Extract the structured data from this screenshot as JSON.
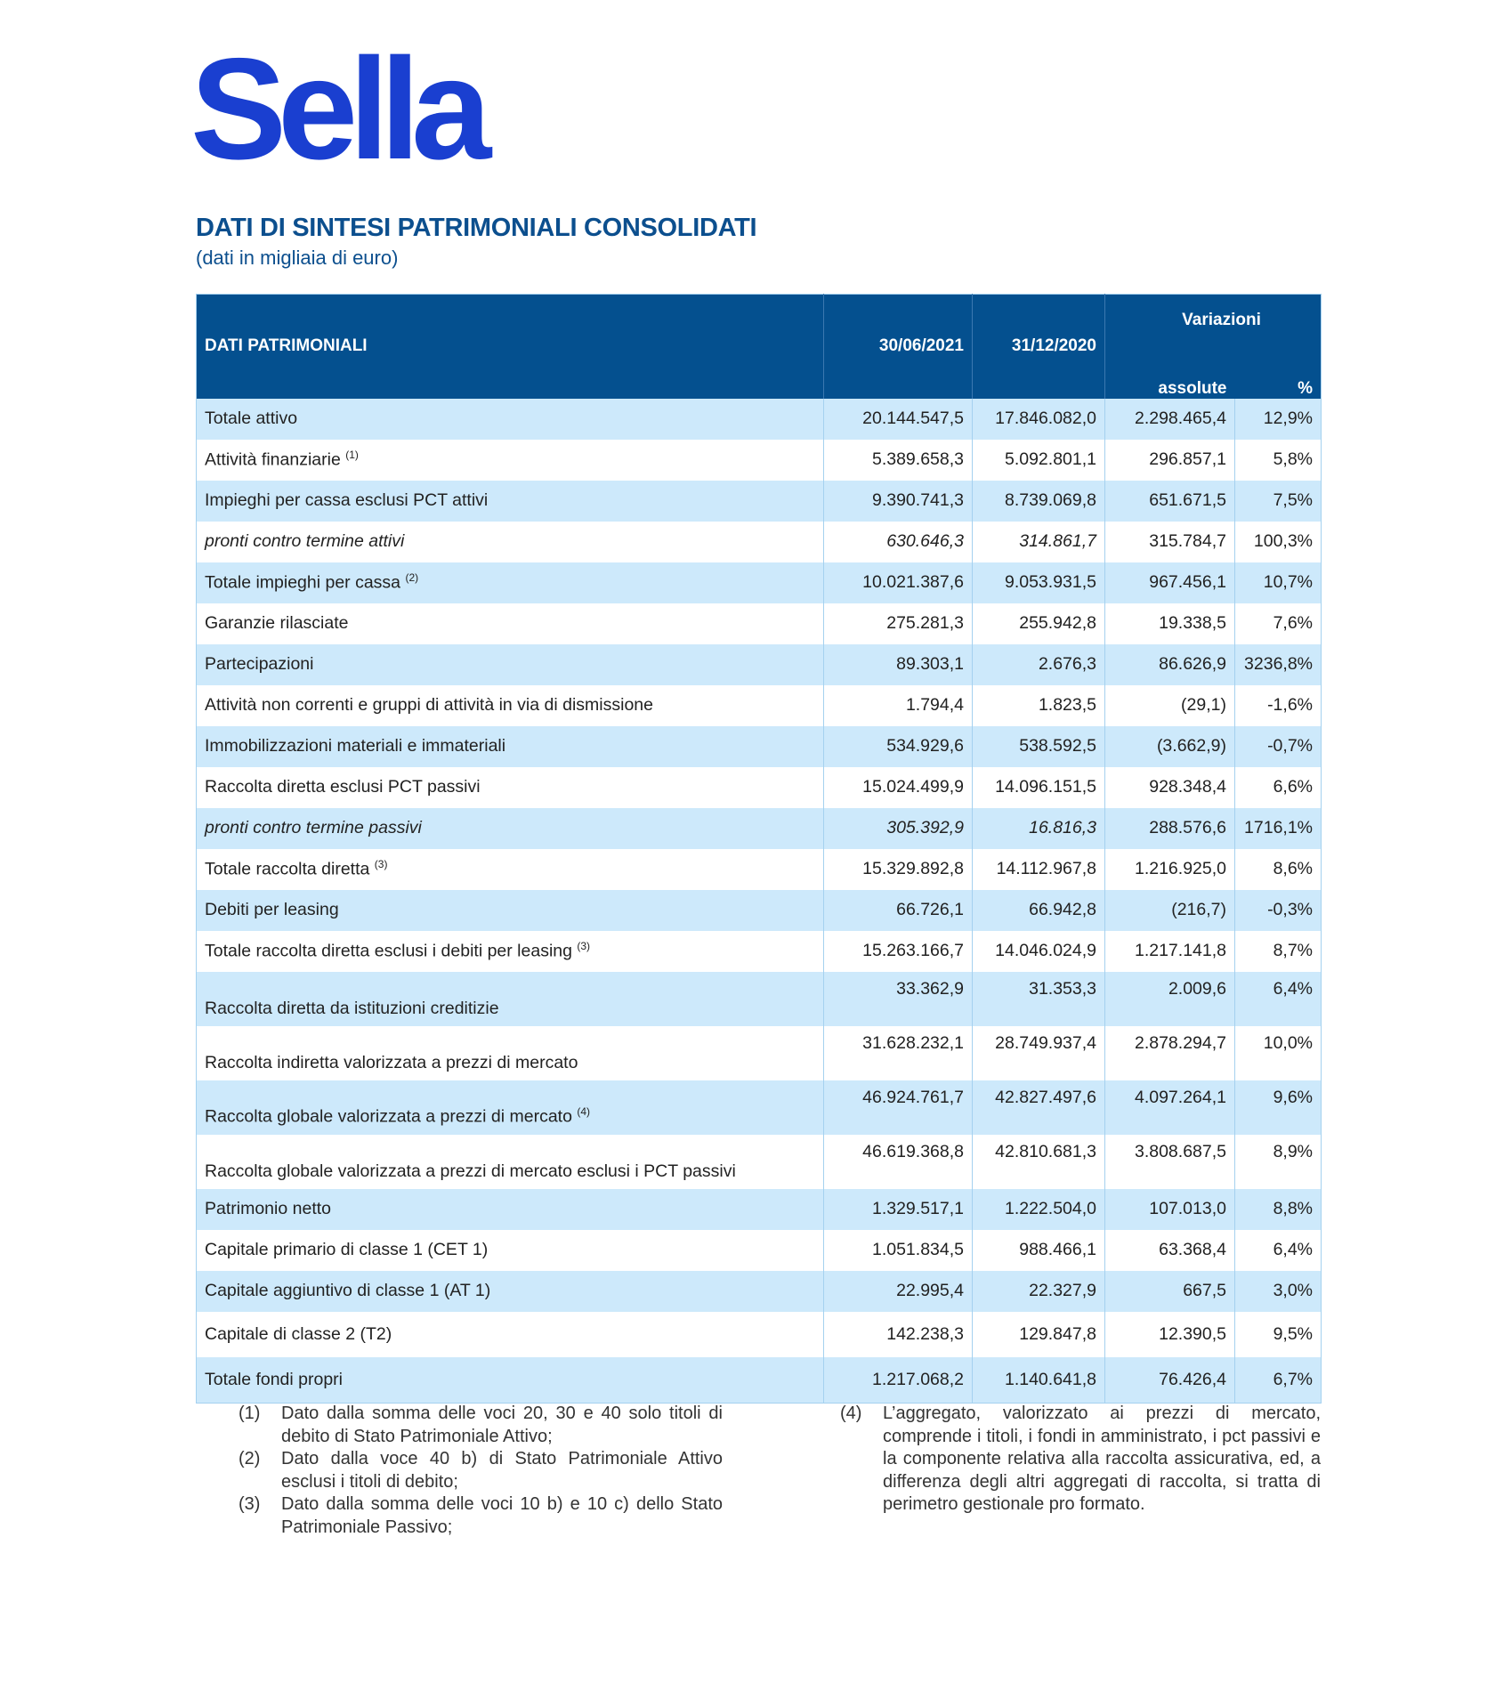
{
  "logo": "Sella",
  "header": {
    "title": "DATI DI SINTESI PATRIMONIALI CONSOLIDATI",
    "subtitle": "(dati in migliaia di euro)"
  },
  "table": {
    "columns": {
      "label": "DATI PATRIMONIALI",
      "date1": "30/06/2021",
      "date2": "31/12/2020",
      "variations": "Variazioni",
      "absolute": "assolute",
      "percent": "%"
    },
    "rows": [
      {
        "label": "Totale attivo",
        "values": [
          "20.144.547,5",
          "17.846.082,0",
          "2.298.465,4",
          "12,9%"
        ]
      },
      {
        "label": "Attività finanziarie",
        "note": "(1)",
        "values": [
          "5.389.658,3",
          "5.092.801,1",
          "296.857,1",
          "5,8%"
        ]
      },
      {
        "label": "Impieghi per cassa esclusi PCT attivi",
        "values": [
          "9.390.741,3",
          "8.739.069,8",
          "651.671,5",
          "7,5%"
        ]
      },
      {
        "label": "pronti contro termine attivi",
        "italic": true,
        "values": [
          "630.646,3",
          "314.861,7",
          "315.784,7",
          "100,3%"
        ]
      },
      {
        "label": "Totale impieghi per cassa",
        "note": "(2)",
        "values": [
          "10.021.387,6",
          "9.053.931,5",
          "967.456,1",
          "10,7%"
        ]
      },
      {
        "label": "Garanzie rilasciate",
        "values": [
          "275.281,3",
          "255.942,8",
          "19.338,5",
          "7,6%"
        ]
      },
      {
        "label": "Partecipazioni",
        "values": [
          "89.303,1",
          "2.676,3",
          "86.626,9",
          "3236,8%"
        ]
      },
      {
        "label": "Attività non correnti e gruppi di attività in via di dismissione",
        "values": [
          "1.794,4",
          "1.823,5",
          "(29,1)",
          "-1,6%"
        ]
      },
      {
        "label": "Immobilizzazioni materiali e immateriali",
        "values": [
          "534.929,6",
          "538.592,5",
          "(3.662,9)",
          "-0,7%"
        ]
      },
      {
        "label": "Raccolta diretta esclusi PCT passivi",
        "values": [
          "15.024.499,9",
          "14.096.151,5",
          "928.348,4",
          "6,6%"
        ]
      },
      {
        "label": "pronti contro termine passivi",
        "italic": true,
        "values": [
          "305.392,9",
          "16.816,3",
          "288.576,6",
          "1716,1%"
        ]
      },
      {
        "label": "Totale raccolta diretta",
        "note": "(3)",
        "values": [
          "15.329.892,8",
          "14.112.967,8",
          "1.216.925,0",
          "8,6%"
        ]
      },
      {
        "label": "Debiti per leasing",
        "values": [
          "66.726,1",
          "66.942,8",
          "(216,7)",
          "-0,3%"
        ]
      },
      {
        "label": "Totale raccolta diretta esclusi i debiti per leasing",
        "note": "(3)",
        "values": [
          "15.263.166,7",
          "14.046.024,9",
          "1.217.141,8",
          "8,7%"
        ]
      },
      {
        "label": "Raccolta diretta da istituzioni creditizie",
        "values": [
          "33.362,9",
          "31.353,3",
          "2.009,6",
          "6,4%"
        ]
      },
      {
        "label": "Raccolta indiretta valorizzata a prezzi di mercato",
        "values": [
          "31.628.232,1",
          "28.749.937,4",
          "2.878.294,7",
          "10,0%"
        ]
      },
      {
        "label": "Raccolta globale valorizzata a prezzi di mercato",
        "note": "(4)",
        "values": [
          "46.924.761,7",
          "42.827.497,6",
          "4.097.264,1",
          "9,6%"
        ]
      },
      {
        "label": "Raccolta globale valorizzata a prezzi di mercato esclusi i PCT passivi",
        "values": [
          "46.619.368,8",
          "42.810.681,3",
          "3.808.687,5",
          "8,9%"
        ]
      },
      {
        "label": "Patrimonio netto",
        "values": [
          "1.329.517,1",
          "1.222.504,0",
          "107.013,0",
          "8,8%"
        ]
      },
      {
        "label": "Capitale primario di classe 1 (CET 1)",
        "values": [
          "1.051.834,5",
          "988.466,1",
          "63.368,4",
          "6,4%"
        ]
      },
      {
        "label": "Capitale aggiuntivo di classe 1 (AT 1)",
        "values": [
          "22.995,4",
          "22.327,9",
          "667,5",
          "3,0%"
        ]
      },
      {
        "label": "Capitale di classe 2 (T2)",
        "values": [
          "142.238,3",
          "129.847,8",
          "12.390,5",
          "9,5%"
        ]
      },
      {
        "label": "Totale fondi propri",
        "values": [
          "1.217.068,2",
          "1.140.641,8",
          "76.426,4",
          "6,7%"
        ]
      }
    ]
  },
  "footnotes": [
    {
      "number": "(1)",
      "text": "Dato dalla somma delle voci 20, 30 e 40 solo titoli di debito di Stato Patrimoniale Attivo;"
    },
    {
      "number": "(2)",
      "text": "Dato dalla voce 40 b) di Stato Patrimoniale Attivo esclusi i titoli di debito;"
    },
    {
      "number": "(3)",
      "text": "Dato dalla somma delle voci 10 b) e 10 c) dello Stato Patrimoniale Passivo;"
    },
    {
      "number": "(4)",
      "text": "L’aggregato, valorizzato ai prezzi di mercato, comprende i titoli, i fondi in amministrato, i pct passivi e la componente relativa alla raccolta assicurativa, ed, a differenza degli altri aggregati di raccolta, si tratta di perimetro gestionale pro formato."
    }
  ]
}
